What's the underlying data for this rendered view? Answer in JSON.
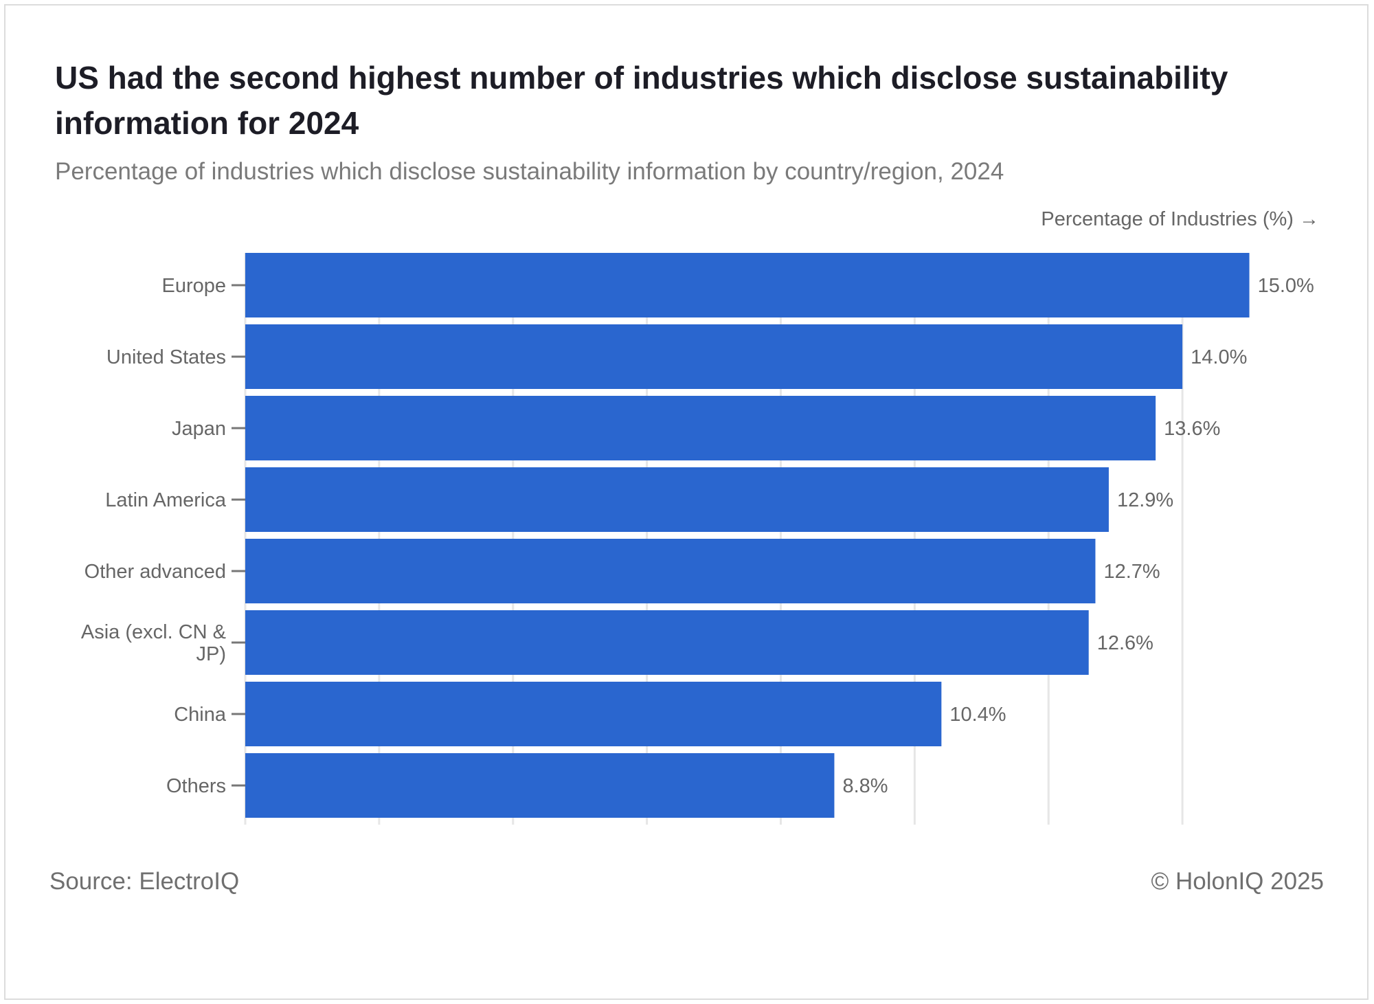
{
  "header": {
    "title": "US had the second highest number of industries which disclose sustainability information for 2024",
    "subtitle": "Percentage of industries which disclose sustainability information by country/region, 2024"
  },
  "footer": {
    "source": "Source: ElectroIQ",
    "copyright": "© HolonIQ 2025"
  },
  "colors": {
    "bar": "#2a66cf",
    "grid": "#e6e6e6",
    "axis_text": "#666666"
  },
  "chart_data": {
    "type": "bar",
    "orientation": "horizontal",
    "title": "US had the second highest number of industries which disclose sustainability information for 2024",
    "subtitle": "Percentage of industries which disclose sustainability information by country/region, 2024",
    "xlabel": "Percentage of Industries (%) →",
    "ylabel": "",
    "categories": [
      "Europe",
      "United States",
      "Japan",
      "Latin America",
      "Other advanced",
      "Asia (excl. CN & JP)",
      "China",
      "Others"
    ],
    "category_lines": [
      [
        "Europe"
      ],
      [
        "United States"
      ],
      [
        "Japan"
      ],
      [
        "Latin America"
      ],
      [
        "Other advanced"
      ],
      [
        "Asia (excl. CN &",
        "JP)"
      ],
      [
        "China"
      ],
      [
        "Others"
      ]
    ],
    "values": [
      15.0,
      14.0,
      13.6,
      12.9,
      12.7,
      12.6,
      10.4,
      8.8
    ],
    "data_labels": [
      "15.0%",
      "14.0%",
      "13.6%",
      "12.9%",
      "12.7%",
      "12.6%",
      "10.4%",
      "8.8%"
    ],
    "xlim": [
      0,
      16
    ],
    "grid_step": 2,
    "grid": true,
    "legend": "none"
  }
}
